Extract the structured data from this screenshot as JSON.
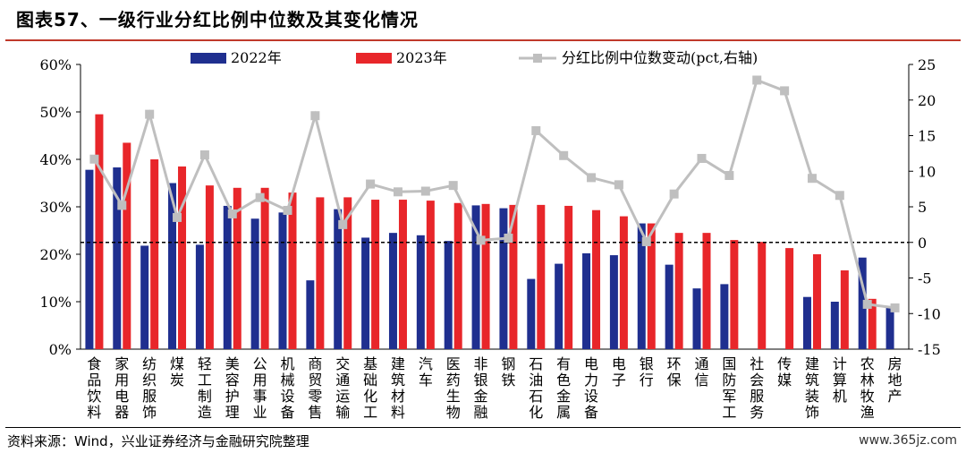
{
  "title": "图表57、一级行业分红比例中位数及其变化情况",
  "source": "资料来源：Wind，兴业证券经济与金融研究院整理",
  "watermark": "www.365jz.com",
  "colors": {
    "bar2022": "#1f2f8f",
    "bar2023": "#e8262a",
    "line": "#bfbfbf",
    "zero": "#000000"
  },
  "chart_data": {
    "type": "bar",
    "categories": [
      "食品饮料",
      "家用电器",
      "纺织服饰",
      "煤炭",
      "轻工制造",
      "美容护理",
      "公用事业",
      "机械设备",
      "商贸零售",
      "交通运输",
      "基础化工",
      "建筑材料",
      "汽车",
      "医药生物",
      "非银金融",
      "钢铁",
      "石油石化",
      "有色金属",
      "电力设备",
      "电子",
      "银行",
      "环保",
      "通信",
      "国防军工",
      "社会服务",
      "传媒",
      "建筑装饰",
      "计算机",
      "农林牧渔",
      "房地产"
    ],
    "series": [
      {
        "name": "2022年",
        "axis": "left",
        "values": [
          37.8,
          38.3,
          21.8,
          35.0,
          22.0,
          30.2,
          27.5,
          28.8,
          14.5,
          29.5,
          23.5,
          24.5,
          24.0,
          22.8,
          30.3,
          29.7,
          14.8,
          18.0,
          20.2,
          19.8,
          26.5,
          17.8,
          12.8,
          13.7,
          null,
          null,
          11.0,
          10.0,
          19.3,
          8.7
        ]
      },
      {
        "name": "2023年",
        "axis": "left",
        "values": [
          49.5,
          43.5,
          40.0,
          38.5,
          34.5,
          34.0,
          34.0,
          33.0,
          32.0,
          32.0,
          31.5,
          31.5,
          31.3,
          30.8,
          30.6,
          30.4,
          30.4,
          30.2,
          29.3,
          28.0,
          26.5,
          24.5,
          24.5,
          23.0,
          22.6,
          21.3,
          20.0,
          16.6,
          10.6,
          null
        ]
      },
      {
        "name": "分红比例中位数变动(pct,右轴)",
        "axis": "right",
        "type": "line",
        "values": [
          11.7,
          5.2,
          18.0,
          3.5,
          12.3,
          4.0,
          6.3,
          4.5,
          17.8,
          2.5,
          8.2,
          7.1,
          7.2,
          8.0,
          0.3,
          0.6,
          15.7,
          12.2,
          9.1,
          8.1,
          0.1,
          6.8,
          11.8,
          9.4,
          22.8,
          21.3,
          9.0,
          6.6,
          -8.7,
          -9.2
        ]
      }
    ],
    "ylim_left": [
      0,
      60
    ],
    "yticks_left": [
      "0%",
      "10%",
      "20%",
      "30%",
      "40%",
      "50%",
      "60%"
    ],
    "yticks_left_values": [
      0,
      10,
      20,
      30,
      40,
      50,
      60
    ],
    "ylim_right": [
      -15,
      25
    ],
    "yticks_right": [
      "-15",
      "-10",
      "-5",
      "0",
      "5",
      "10",
      "15",
      "20",
      "25"
    ],
    "yticks_right_values": [
      -15,
      -10,
      -5,
      0,
      5,
      10,
      15,
      20,
      25
    ],
    "zero_line": "dashed at right-axis 0",
    "legend_position": "top",
    "grid": false
  }
}
